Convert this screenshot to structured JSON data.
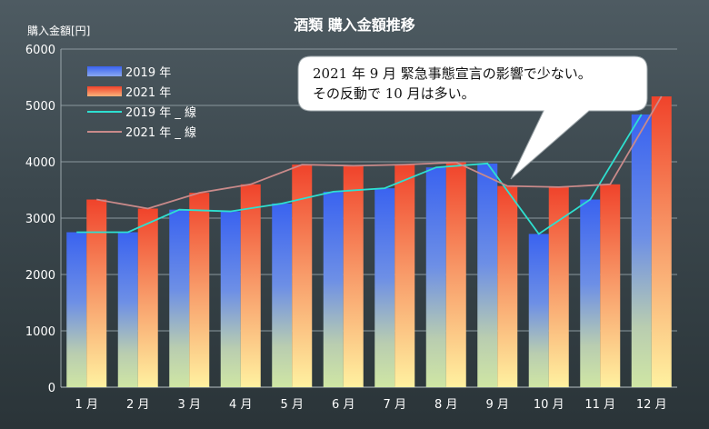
{
  "chart_data": {
    "type": "bar",
    "title": "酒類 購入金額推移",
    "ylabel": "購入金額[円]",
    "xlabel": "",
    "ylim": [
      0,
      6000
    ],
    "yticks": [
      0,
      1000,
      2000,
      3000,
      4000,
      5000,
      6000
    ],
    "grid": true,
    "legend_position": "top-left",
    "categories": [
      "1 月",
      "2 月",
      "3 月",
      "4 月",
      "5 月",
      "6 月",
      "7 月",
      "8 月",
      "9 月",
      "10 月",
      "11 月",
      "12 月"
    ],
    "series": [
      {
        "name": "2019 年",
        "kind": "bar",
        "color": "#3d6df2",
        "values": [
          2750,
          2750,
          3150,
          3120,
          3260,
          3470,
          3530,
          3900,
          3970,
          2720,
          3330,
          4840
        ]
      },
      {
        "name": "2021 年",
        "kind": "bar",
        "color": "#f24a2e",
        "values": [
          3330,
          3170,
          3450,
          3600,
          3950,
          3930,
          3950,
          3990,
          3570,
          3550,
          3600,
          5160
        ]
      },
      {
        "name": "2019 年 _ 線",
        "kind": "line",
        "color": "#2ee0d0",
        "values": [
          2750,
          2750,
          3150,
          3120,
          3260,
          3470,
          3530,
          3900,
          3970,
          2720,
          3330,
          4840
        ]
      },
      {
        "name": "2021 年 _ 線",
        "kind": "line",
        "color": "#c98a8a",
        "values": [
          3330,
          3170,
          3450,
          3600,
          3950,
          3930,
          3950,
          3990,
          3570,
          3550,
          3600,
          5160
        ]
      }
    ],
    "annotation": {
      "lines": [
        "2021 年 9 月 緊急事態宣言の影響で少ない。",
        "その反動で 10 月は多い。"
      ],
      "points_to_category": "9 月"
    }
  }
}
